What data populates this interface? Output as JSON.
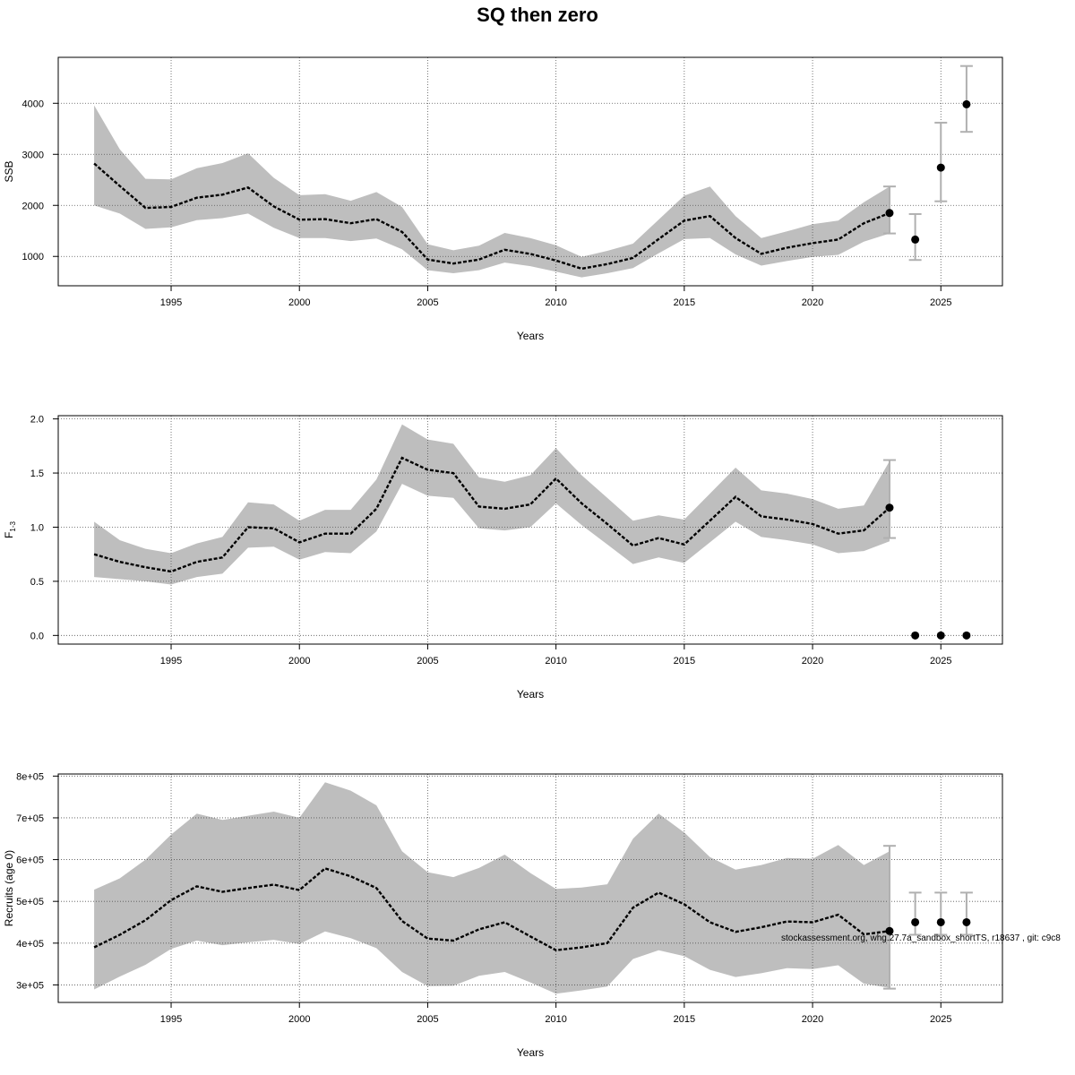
{
  "title": "SQ then zero",
  "colors": {
    "band": "#bebebe",
    "line": "#000000",
    "errorbar": "#b0b0b0",
    "grid": "#555555"
  },
  "footnote": "stockassessment.org, whg.27.7a_sandbox_shortTS, r18637 , git: c9c8",
  "chart_data": [
    {
      "type": "line",
      "xlabel": "Years",
      "ylabel": "SSB",
      "xlim": [
        1990.6,
        2027.4
      ],
      "ylim": [
        425,
        4900
      ],
      "xticks": [
        1995,
        2000,
        2005,
        2010,
        2015,
        2020,
        2025
      ],
      "yticks": [
        1000,
        2000,
        3000,
        4000
      ],
      "ytick_labels": [
        "1000",
        "2000",
        "3000",
        "4000"
      ],
      "grid": true,
      "x": [
        1992,
        1993,
        1994,
        1995,
        1996,
        1997,
        1998,
        1999,
        2000,
        2001,
        2002,
        2003,
        2004,
        2005,
        2006,
        2007,
        2008,
        2009,
        2010,
        2011,
        2012,
        2013,
        2014,
        2015,
        2016,
        2017,
        2018,
        2019,
        2020,
        2021,
        2022,
        2023
      ],
      "estimate": [
        2820,
        2380,
        1950,
        1970,
        2150,
        2210,
        2350,
        1980,
        1720,
        1730,
        1650,
        1730,
        1480,
        940,
        860,
        940,
        1130,
        1050,
        920,
        760,
        850,
        970,
        1340,
        1700,
        1790,
        1360,
        1050,
        1170,
        1260,
        1330,
        1650,
        1850
      ],
      "upper": [
        3960,
        3100,
        2520,
        2510,
        2730,
        2830,
        3020,
        2540,
        2200,
        2220,
        2090,
        2260,
        1970,
        1240,
        1120,
        1210,
        1460,
        1360,
        1220,
        990,
        1110,
        1250,
        1720,
        2190,
        2370,
        1790,
        1360,
        1490,
        1630,
        1700,
        2060,
        2370
      ],
      "lower": [
        2000,
        1840,
        1540,
        1570,
        1710,
        1750,
        1840,
        1560,
        1360,
        1360,
        1300,
        1350,
        1140,
        730,
        670,
        730,
        880,
        810,
        700,
        590,
        670,
        770,
        1060,
        1340,
        1360,
        1040,
        820,
        910,
        990,
        1030,
        1290,
        1450
      ],
      "forecast": {
        "x": [
          2023,
          2024,
          2025,
          2026
        ],
        "median": [
          1850,
          1330,
          2740,
          3980
        ],
        "lower": [
          1450,
          930,
          2080,
          3440
        ],
        "upper": [
          2370,
          1830,
          3620,
          4730
        ]
      }
    },
    {
      "type": "line",
      "xlabel": "Years",
      "ylabel": "F",
      "ylabel_sub": "1-3",
      "xlim": [
        1990.6,
        2027.4
      ],
      "ylim": [
        -0.08,
        2.03
      ],
      "xticks": [
        1995,
        2000,
        2005,
        2010,
        2015,
        2020,
        2025
      ],
      "yticks": [
        0,
        0.5,
        1,
        1.5,
        2
      ],
      "ytick_labels": [
        "0.0",
        "0.5",
        "1.0",
        "1.5",
        "2.0"
      ],
      "grid": true,
      "x": [
        1992,
        1993,
        1994,
        1995,
        1996,
        1997,
        1998,
        1999,
        2000,
        2001,
        2002,
        2003,
        2004,
        2005,
        2006,
        2007,
        2008,
        2009,
        2010,
        2011,
        2012,
        2013,
        2014,
        2015,
        2016,
        2017,
        2018,
        2019,
        2020,
        2021,
        2022,
        2023
      ],
      "estimate": [
        0.75,
        0.68,
        0.63,
        0.59,
        0.68,
        0.72,
        1.0,
        0.99,
        0.86,
        0.94,
        0.94,
        1.17,
        1.64,
        1.53,
        1.5,
        1.19,
        1.17,
        1.21,
        1.45,
        1.22,
        1.03,
        0.83,
        0.9,
        0.84,
        1.06,
        1.28,
        1.1,
        1.07,
        1.03,
        0.94,
        0.97,
        1.18
      ],
      "upper": [
        1.05,
        0.88,
        0.8,
        0.76,
        0.85,
        0.91,
        1.23,
        1.21,
        1.06,
        1.16,
        1.16,
        1.44,
        1.95,
        1.81,
        1.77,
        1.46,
        1.42,
        1.48,
        1.73,
        1.48,
        1.27,
        1.06,
        1.11,
        1.07,
        1.31,
        1.55,
        1.34,
        1.31,
        1.26,
        1.17,
        1.2,
        1.61
      ],
      "lower": [
        0.54,
        0.52,
        0.5,
        0.47,
        0.54,
        0.57,
        0.81,
        0.82,
        0.7,
        0.77,
        0.76,
        0.96,
        1.4,
        1.29,
        1.27,
        0.99,
        0.97,
        1.0,
        1.22,
        1.02,
        0.84,
        0.66,
        0.72,
        0.67,
        0.86,
        1.05,
        0.91,
        0.88,
        0.84,
        0.76,
        0.78,
        0.87
      ],
      "forecast": {
        "x": [
          2023,
          2024,
          2025,
          2026
        ],
        "median": [
          1.18,
          0,
          0,
          0
        ],
        "lower": [
          0.9,
          null,
          null,
          null
        ],
        "upper": [
          1.62,
          null,
          null,
          null
        ]
      }
    },
    {
      "type": "line",
      "xlabel": "Years",
      "ylabel": "Recruits (age 0)",
      "xlim": [
        1990.6,
        2027.4
      ],
      "ylim": [
        258000,
        805000
      ],
      "xticks": [
        1995,
        2000,
        2005,
        2010,
        2015,
        2020,
        2025
      ],
      "yticks": [
        300000,
        400000,
        500000,
        600000,
        700000,
        800000
      ],
      "ytick_labels": [
        "3e+05",
        "4e+05",
        "5e+05",
        "6e+05",
        "7e+05",
        "8e+05"
      ],
      "grid": true,
      "x": [
        1992,
        1993,
        1994,
        1995,
        1996,
        1997,
        1998,
        1999,
        2000,
        2001,
        2002,
        2003,
        2004,
        2005,
        2006,
        2007,
        2008,
        2009,
        2010,
        2011,
        2012,
        2013,
        2014,
        2015,
        2016,
        2017,
        2018,
        2019,
        2020,
        2021,
        2022,
        2023
      ],
      "estimate": [
        390000,
        420000,
        455000,
        503000,
        536000,
        523000,
        532000,
        540000,
        527000,
        579000,
        560000,
        532000,
        453000,
        411000,
        406000,
        433000,
        450000,
        416000,
        383000,
        390000,
        400000,
        485000,
        521000,
        493000,
        450000,
        427000,
        438000,
        452000,
        450000,
        468000,
        421000,
        429000
      ],
      "upper": [
        528000,
        555000,
        600000,
        660000,
        710000,
        695000,
        705000,
        715000,
        700000,
        785000,
        765000,
        730000,
        620000,
        570000,
        558000,
        580000,
        612000,
        568000,
        530000,
        533000,
        541000,
        650000,
        710000,
        665000,
        606000,
        576000,
        587000,
        604000,
        602000,
        635000,
        587000,
        620000
      ],
      "lower": [
        289000,
        320000,
        348000,
        386000,
        406000,
        395000,
        402000,
        408000,
        398000,
        428000,
        412000,
        388000,
        331000,
        297000,
        298000,
        322000,
        331000,
        306000,
        279000,
        287000,
        296000,
        362000,
        383000,
        369000,
        336000,
        319000,
        328000,
        340000,
        338000,
        347000,
        303000,
        293000
      ],
      "forecast": {
        "x": [
          2023,
          2024,
          2025,
          2026
        ],
        "median": [
          429000,
          450000,
          450000,
          450000
        ],
        "lower": [
          291000,
          420000,
          420000,
          420000
        ],
        "upper": [
          633000,
          521000,
          521000,
          521000
        ]
      }
    }
  ]
}
